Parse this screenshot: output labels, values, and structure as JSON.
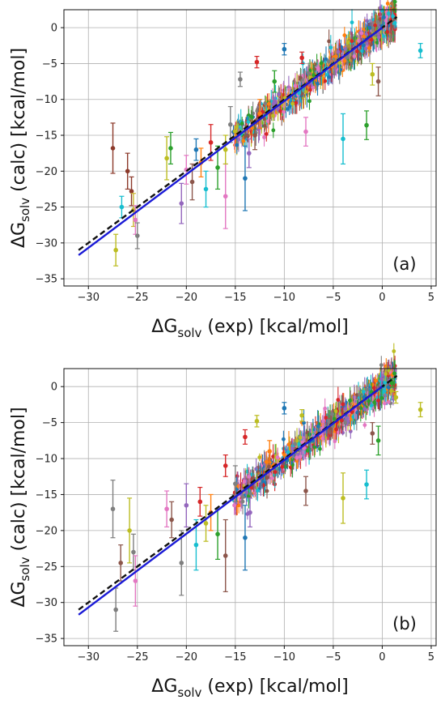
{
  "chart_data": [
    {
      "type": "scatter",
      "panel_label": "(a)",
      "xlabel": {
        "delta": "ΔG",
        "sub": "solv",
        "rest": " (exp) [kcal/mol]"
      },
      "ylabel": {
        "delta": "ΔG",
        "sub": "solv",
        "rest": " (calc) [kcal/mol]"
      },
      "xlim": [
        -32.5,
        5.5
      ],
      "ylim": [
        -36,
        2.5
      ],
      "xticks": [
        -30,
        -25,
        -20,
        -15,
        -10,
        -5,
        0,
        5
      ],
      "yticks": [
        -35,
        -30,
        -25,
        -20,
        -15,
        -10,
        -5,
        0
      ],
      "grid": true,
      "reference_lines": [
        {
          "style": "dashed",
          "color": "#111111",
          "x": [
            -31,
            1.5
          ],
          "y": [
            -31,
            1.5
          ]
        },
        {
          "style": "solid",
          "color": "#1a1ad6",
          "x": [
            -31,
            0
          ],
          "y": [
            -31.7,
            0
          ]
        }
      ],
      "points": [
        {
          "x": -27.5,
          "y": -16.8,
          "err": 3.5,
          "color": "#8c3a2b"
        },
        {
          "x": -26.0,
          "y": -20.0,
          "err": 2.5,
          "color": "#8c3a2b"
        },
        {
          "x": -25.6,
          "y": -22.8,
          "err": 2.0,
          "color": "#8c3a2b"
        },
        {
          "x": -25.4,
          "y": -25.4,
          "err": 2.3,
          "color": "#c9b52e"
        },
        {
          "x": -25.2,
          "y": -26.8,
          "err": 2.0,
          "color": "#e377c2"
        },
        {
          "x": -26.6,
          "y": -25.0,
          "err": 1.5,
          "color": "#17becf"
        },
        {
          "x": -27.2,
          "y": -31.0,
          "err": 2.2,
          "color": "#bcbd22"
        },
        {
          "x": -25.0,
          "y": -29.0,
          "err": 1.8,
          "color": "#7f7f7f"
        },
        {
          "x": -22.0,
          "y": -18.2,
          "err": 3.0,
          "color": "#bcbd22"
        },
        {
          "x": -21.6,
          "y": -16.8,
          "err": 2.2,
          "color": "#2ca02c"
        },
        {
          "x": -20.5,
          "y": -24.5,
          "err": 2.8,
          "color": "#9467bd"
        },
        {
          "x": -20.0,
          "y": -19.8,
          "err": 2.0,
          "color": "#e377c2"
        },
        {
          "x": -19.4,
          "y": -21.5,
          "err": 2.5,
          "color": "#8c564b"
        },
        {
          "x": -19.0,
          "y": -17.0,
          "err": 1.5,
          "color": "#1f77b4"
        },
        {
          "x": -18.5,
          "y": -18.8,
          "err": 2.0,
          "color": "#ff7f0e"
        },
        {
          "x": -18.0,
          "y": -22.5,
          "err": 2.5,
          "color": "#17becf"
        },
        {
          "x": -17.5,
          "y": -16.0,
          "err": 2.5,
          "color": "#d62728"
        },
        {
          "x": -16.8,
          "y": -19.5,
          "err": 3.0,
          "color": "#2ca02c"
        },
        {
          "x": -16.0,
          "y": -23.5,
          "err": 4.5,
          "color": "#e377c2"
        },
        {
          "x": -16.0,
          "y": -17.0,
          "err": 2.0,
          "color": "#bcbd22"
        },
        {
          "x": -15.5,
          "y": -13.5,
          "err": 2.5,
          "color": "#7f7f7f"
        },
        {
          "x": -14.0,
          "y": -21.0,
          "err": 4.5,
          "color": "#1f77b4"
        },
        {
          "x": -13.6,
          "y": -17.5,
          "err": 2.0,
          "color": "#9467bd"
        },
        {
          "x": -13.0,
          "y": -15.0,
          "err": 2.0,
          "color": "#8c564b"
        },
        {
          "x": -12.5,
          "y": -12.0,
          "err": 2.0,
          "color": "#ff7f0e"
        },
        {
          "x": -12.8,
          "y": -4.8,
          "err": 0.8,
          "color": "#d62728"
        },
        {
          "x": -14.5,
          "y": -7.2,
          "err": 1.0,
          "color": "#7f7f7f"
        },
        {
          "x": -11.0,
          "y": -7.5,
          "err": 1.5,
          "color": "#2ca02c"
        },
        {
          "x": -10.0,
          "y": -3.0,
          "err": 0.8,
          "color": "#1f77b4"
        },
        {
          "x": -8.2,
          "y": -4.2,
          "err": 0.8,
          "color": "#d62728"
        },
        {
          "x": -7.8,
          "y": -14.5,
          "err": 2.0,
          "color": "#e377c2"
        },
        {
          "x": -4.0,
          "y": -15.5,
          "err": 3.5,
          "color": "#17becf"
        },
        {
          "x": -1.6,
          "y": -13.6,
          "err": 2.0,
          "color": "#2ca02c"
        },
        {
          "x": -0.4,
          "y": -7.5,
          "err": 2.0,
          "color": "#8c564b"
        },
        {
          "x": -1.0,
          "y": -6.5,
          "err": 1.5,
          "color": "#bcbd22"
        },
        {
          "x": 3.9,
          "y": -3.2,
          "err": 1.0,
          "color": "#17becf"
        }
      ]
    },
    {
      "type": "scatter",
      "panel_label": "(b)",
      "xlabel": {
        "delta": "ΔG",
        "sub": "solv",
        "rest": " (exp) [kcal/mol]"
      },
      "ylabel": {
        "delta": "ΔG",
        "sub": "solv",
        "rest": " (calc) [kcal/mol]"
      },
      "xlim": [
        -32.5,
        5.5
      ],
      "ylim": [
        -36,
        2.5
      ],
      "xticks": [
        -30,
        -25,
        -20,
        -15,
        -10,
        -5,
        0,
        5
      ],
      "yticks": [
        -35,
        -30,
        -25,
        -20,
        -15,
        -10,
        -5,
        0
      ],
      "grid": true,
      "reference_lines": [
        {
          "style": "dashed",
          "color": "#111111",
          "x": [
            -31,
            1.5
          ],
          "y": [
            -31,
            1.5
          ]
        },
        {
          "style": "solid",
          "color": "#1a1ad6",
          "x": [
            -31,
            0
          ],
          "y": [
            -31.7,
            0
          ]
        }
      ],
      "points": [
        {
          "x": -27.5,
          "y": -17.0,
          "err": 4.0,
          "color": "#7f7f7f"
        },
        {
          "x": -27.2,
          "y": -31.0,
          "err": 3.0,
          "color": "#7f7f7f"
        },
        {
          "x": -26.7,
          "y": -24.5,
          "err": 2.5,
          "color": "#8c564b"
        },
        {
          "x": -25.8,
          "y": -20.0,
          "err": 4.5,
          "color": "#bcbd22"
        },
        {
          "x": -25.4,
          "y": -23.0,
          "err": 2.5,
          "color": "#7f7f7f"
        },
        {
          "x": -25.2,
          "y": -27.0,
          "err": 3.5,
          "color": "#e377c2"
        },
        {
          "x": -22.0,
          "y": -17.0,
          "err": 2.5,
          "color": "#e377c2"
        },
        {
          "x": -21.5,
          "y": -18.5,
          "err": 2.5,
          "color": "#8c564b"
        },
        {
          "x": -20.5,
          "y": -24.5,
          "err": 4.5,
          "color": "#7f7f7f"
        },
        {
          "x": -20.0,
          "y": -16.5,
          "err": 3.0,
          "color": "#9467bd"
        },
        {
          "x": -19.0,
          "y": -22.0,
          "err": 3.5,
          "color": "#17becf"
        },
        {
          "x": -18.6,
          "y": -16.0,
          "err": 2.0,
          "color": "#d62728"
        },
        {
          "x": -18.0,
          "y": -19.0,
          "err": 2.5,
          "color": "#bcbd22"
        },
        {
          "x": -17.5,
          "y": -17.5,
          "err": 2.5,
          "color": "#ff7f0e"
        },
        {
          "x": -16.8,
          "y": -20.5,
          "err": 3.5,
          "color": "#2ca02c"
        },
        {
          "x": -16.0,
          "y": -23.5,
          "err": 5.0,
          "color": "#8c564b"
        },
        {
          "x": -16.0,
          "y": -11.0,
          "err": 1.5,
          "color": "#d62728"
        },
        {
          "x": -15.0,
          "y": -13.5,
          "err": 2.5,
          "color": "#7f7f7f"
        },
        {
          "x": -14.0,
          "y": -21.0,
          "err": 4.5,
          "color": "#1f77b4"
        },
        {
          "x": -13.5,
          "y": -17.5,
          "err": 2.0,
          "color": "#9467bd"
        },
        {
          "x": -12.8,
          "y": -4.8,
          "err": 0.8,
          "color": "#bcbd22"
        },
        {
          "x": -14.0,
          "y": -7.0,
          "err": 1.0,
          "color": "#d62728"
        },
        {
          "x": -11.5,
          "y": -9.0,
          "err": 1.5,
          "color": "#ff7f0e"
        },
        {
          "x": -10.0,
          "y": -3.0,
          "err": 0.8,
          "color": "#1f77b4"
        },
        {
          "x": -8.2,
          "y": -4.0,
          "err": 0.8,
          "color": "#bcbd22"
        },
        {
          "x": -7.8,
          "y": -14.5,
          "err": 2.0,
          "color": "#8c564b"
        },
        {
          "x": -4.0,
          "y": -15.5,
          "err": 3.5,
          "color": "#bcbd22"
        },
        {
          "x": -1.6,
          "y": -13.6,
          "err": 2.0,
          "color": "#17becf"
        },
        {
          "x": -0.4,
          "y": -7.5,
          "err": 2.0,
          "color": "#2ca02c"
        },
        {
          "x": -1.0,
          "y": -6.5,
          "err": 1.5,
          "color": "#8c564b"
        },
        {
          "x": 1.0,
          "y": 0.5,
          "err": 0.6,
          "color": "#2ca02c"
        },
        {
          "x": 1.4,
          "y": -1.5,
          "err": 0.8,
          "color": "#bcbd22"
        },
        {
          "x": 3.9,
          "y": -3.2,
          "err": 1.0,
          "color": "#bcbd22"
        }
      ]
    }
  ]
}
